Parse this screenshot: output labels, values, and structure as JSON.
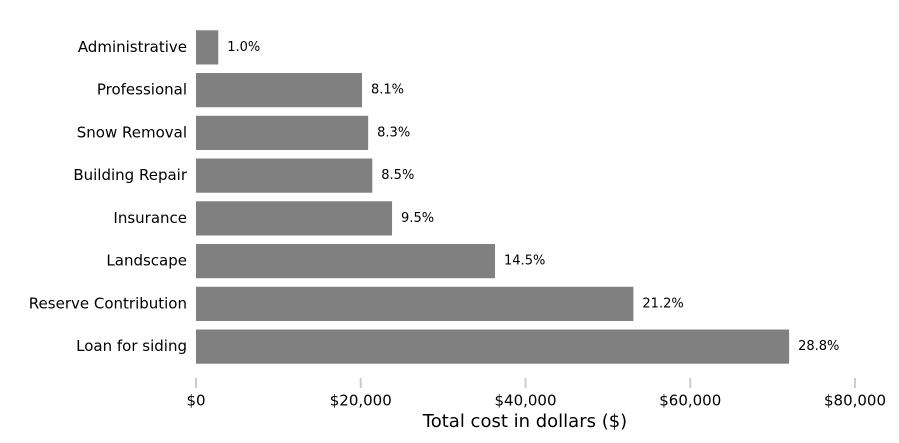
{
  "chart_data": {
    "type": "bar",
    "orientation": "horizontal",
    "xlabel": "Total cost in dollars ($)",
    "categories": [
      "Administrative",
      "Professional",
      "Snow Removal",
      "Building Repair",
      "Insurance",
      "Landscape",
      "Reserve Contribution",
      "Loan for siding"
    ],
    "values": [
      2700,
      20150,
      20900,
      21400,
      23800,
      36300,
      53100,
      72000
    ],
    "share_labels": [
      "1.0%",
      "8.1%",
      "8.3%",
      "8.5%",
      "9.5%",
      "14.5%",
      "21.2%",
      "28.8%"
    ],
    "color": "#808080",
    "xlim": [
      0,
      80000
    ],
    "xticks": [
      {
        "value": 0,
        "label": "$0"
      },
      {
        "value": 20000,
        "label": "$20,000"
      },
      {
        "value": 40000,
        "label": "$40,000"
      },
      {
        "value": 60000,
        "label": "$60,000"
      },
      {
        "value": 80000,
        "label": "$80,000"
      }
    ],
    "grid": false
  }
}
